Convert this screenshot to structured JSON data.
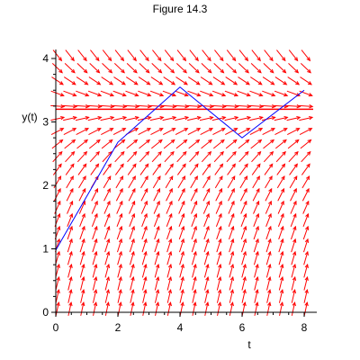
{
  "chart_data": {
    "type": "line",
    "title": "Figure 14.3",
    "xlabel": "t",
    "ylabel": "y(t)",
    "xlim": [
      0,
      8.3
    ],
    "ylim": [
      0,
      4.1
    ],
    "x_ticks": [
      0,
      2,
      4,
      6,
      8
    ],
    "y_ticks": [
      0,
      1,
      2,
      3,
      4
    ],
    "x_tick_labels": [
      "0",
      "2",
      "4",
      "6",
      "8"
    ],
    "y_tick_labels": [
      "0",
      "1",
      "2",
      "3",
      "4"
    ],
    "grid": false,
    "legend": "none",
    "colors": {
      "field": "#ff0000",
      "equilibrium": "#ff0000",
      "solution": "#0000ff",
      "axes": "#000000"
    },
    "direction_field": {
      "description_free": true,
      "t_samples": [
        0.05,
        0.45,
        0.85,
        1.25,
        1.65,
        2.05,
        2.45,
        2.85,
        3.25,
        3.65,
        4.05,
        4.45,
        4.85,
        5.25,
        5.65,
        6.05,
        6.45,
        6.85,
        7.25,
        7.65,
        8.05
      ],
      "y_samples": [
        0.05,
        0.25,
        0.45,
        0.65,
        0.85,
        1.05,
        1.25,
        1.45,
        1.65,
        1.85,
        2.05,
        2.25,
        2.45,
        2.65,
        2.85,
        3.05,
        3.25,
        3.45,
        3.65,
        3.85,
        4.05
      ],
      "equilibrium": 3.2
    },
    "equilibrium_lines": [
      3.2
    ],
    "series": [
      {
        "x": [
          0,
          2,
          4,
          6,
          8
        ],
        "y": [
          0.98,
          2.68,
          3.55,
          2.75,
          3.5
        ]
      }
    ]
  }
}
